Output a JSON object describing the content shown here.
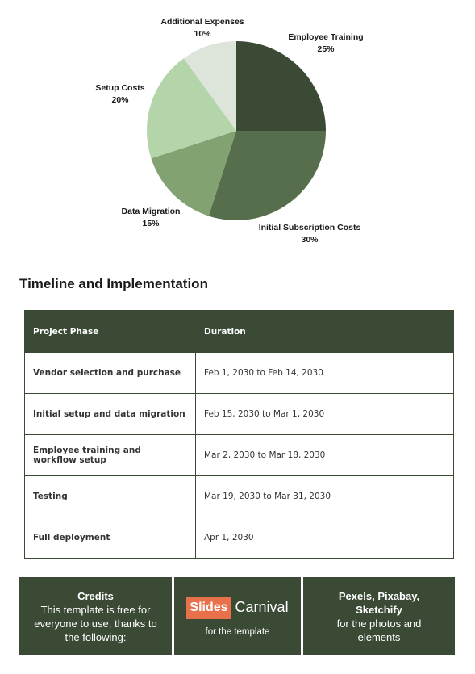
{
  "chart_data": {
    "type": "pie",
    "slices": [
      {
        "label": "Employee Training",
        "percent_label": "25%",
        "value": 25,
        "color": "#3a4a35"
      },
      {
        "label": "Initial Subscription Costs",
        "percent_label": "30%",
        "value": 30,
        "color": "#566e4c"
      },
      {
        "label": "Data Migration",
        "percent_label": "15%",
        "value": 15,
        "color": "#83a272"
      },
      {
        "label": "Setup Costs",
        "percent_label": "20%",
        "value": 20,
        "color": "#b4d4aa"
      },
      {
        "label": "Additional Expenses",
        "percent_label": "10%",
        "value": 10,
        "color": "#dde5da"
      }
    ]
  },
  "timeline": {
    "title": "Timeline and Implementation",
    "headers": [
      "Project Phase",
      "Duration"
    ],
    "rows": [
      {
        "phase": "Vendor selection and purchase",
        "duration": "Feb 1, 2030 to Feb 14, 2030"
      },
      {
        "phase": "Initial setup and data migration",
        "duration": "Feb 15, 2030 to Mar 1, 2030"
      },
      {
        "phase": "Employee training and workflow setup",
        "duration": "Mar 2, 2030 to Mar 18, 2030"
      },
      {
        "phase": "Testing",
        "duration": "Mar 19, 2030 to Mar 31, 2030"
      },
      {
        "phase": "Full deployment",
        "duration": "Apr 1, 2030"
      }
    ]
  },
  "credits": {
    "box1": {
      "title": "Credits",
      "lines": [
        "This template is free for",
        "everyone to use, thanks to",
        "the following:"
      ]
    },
    "box2": {
      "logo_part1": "Slides",
      "logo_part2": "Carnival",
      "caption": "for the template",
      "logo_accent_color": "#e8704a"
    },
    "box3": {
      "title_lines": [
        "Pexels, Pixabay,",
        "Sketchify"
      ],
      "lines": [
        "for the photos and",
        "elements"
      ]
    }
  }
}
